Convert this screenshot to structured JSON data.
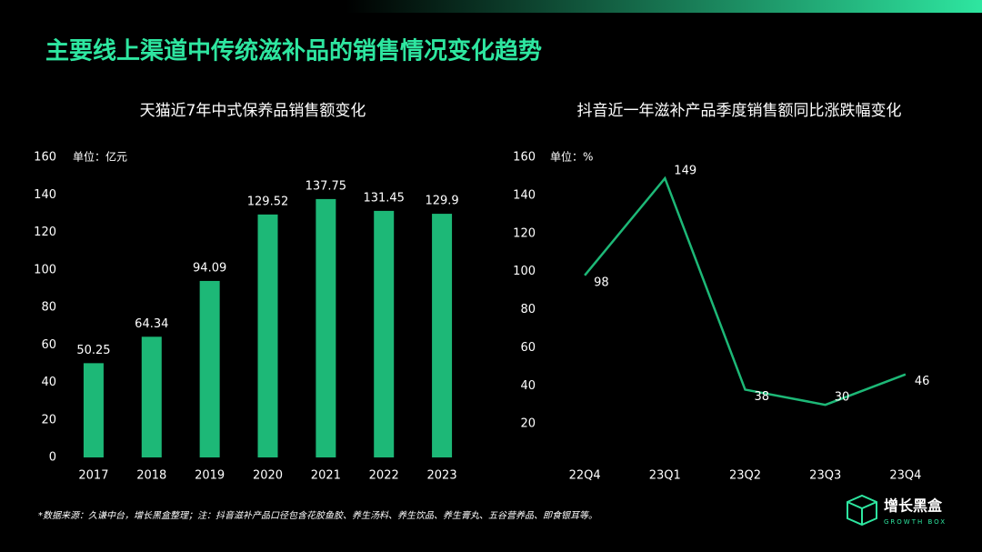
{
  "title": "主要线上渠道中传统滋补品的销售情况变化趋势",
  "footnote": "*数据来源：久谦中台，增长黑盒整理；注：抖音滋补产品口径包含花胶鱼胶、养生汤料、养生饮品、养生膏丸、五谷营养品、即食银耳等。",
  "logo": {
    "name": "增长黑盒",
    "sub": "GROWTH BOX"
  },
  "chart_data": [
    {
      "type": "bar",
      "title": "天猫近7年中式保养品销售额变化",
      "unit_label": "单位：亿元",
      "categories": [
        "2017",
        "2018",
        "2019",
        "2020",
        "2021",
        "2022",
        "2023"
      ],
      "values": [
        50.25,
        64.34,
        94.09,
        129.52,
        137.75,
        131.45,
        129.9
      ],
      "color": "#1db877",
      "ylim": [
        0,
        160
      ],
      "yticks": [
        0,
        20,
        40,
        60,
        80,
        100,
        120,
        140,
        160
      ],
      "grid": false
    },
    {
      "type": "line",
      "title": "抖音近一年滋补产品季度销售额同比涨跌幅变化",
      "unit_label": "单位：%",
      "categories": [
        "22Q4",
        "23Q1",
        "23Q2",
        "23Q3",
        "23Q4"
      ],
      "values": [
        98,
        149,
        38,
        30,
        46
      ],
      "color": "#1db877",
      "ylim": [
        0,
        160
      ],
      "yticks": [
        20,
        40,
        60,
        80,
        100,
        120,
        140,
        160
      ],
      "grid": false
    }
  ]
}
